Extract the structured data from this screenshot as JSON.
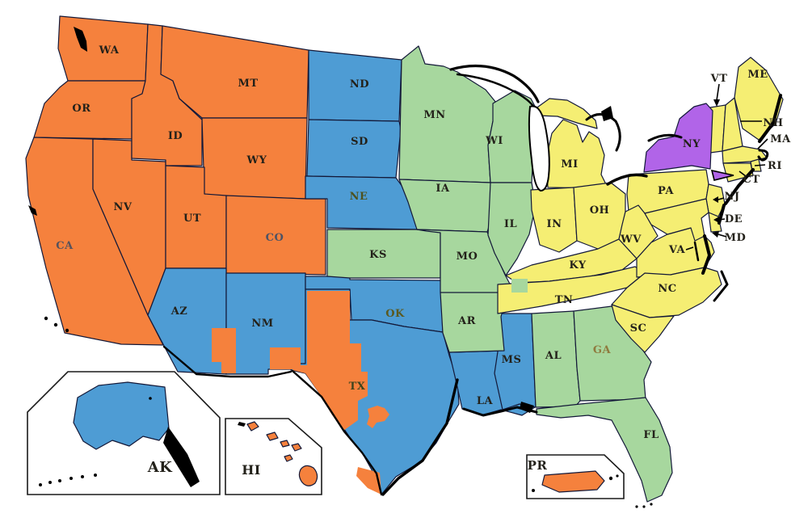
{
  "map": {
    "background": "#ffffff",
    "state_border_color": "#131838",
    "coast_color": "#000000",
    "label_default_color": "#23211a",
    "regions": {
      "orange": "#F5813D",
      "blue": "#4E9CD4",
      "green": "#A7D79E",
      "yellow": "#F5EE73",
      "purple": "#B164E8"
    },
    "label_overrides": {
      "CA": "#56525c",
      "CO": "#4d5365",
      "GA": "#8f7a3e",
      "NE": "#4d521e",
      "OK": "#5a5a22",
      "TX": "#3f451e"
    },
    "states": [
      {
        "abbr": "WA",
        "region": "orange"
      },
      {
        "abbr": "OR",
        "region": "orange"
      },
      {
        "abbr": "CA",
        "region": "orange"
      },
      {
        "abbr": "NV",
        "region": "orange"
      },
      {
        "abbr": "ID",
        "region": "orange"
      },
      {
        "abbr": "MT",
        "region": "orange"
      },
      {
        "abbr": "WY",
        "region": "orange"
      },
      {
        "abbr": "UT",
        "region": "orange"
      },
      {
        "abbr": "CO",
        "region": "orange"
      },
      {
        "abbr": "AZ",
        "region": "blue"
      },
      {
        "abbr": "NM",
        "region": "blue"
      },
      {
        "abbr": "ND",
        "region": "blue"
      },
      {
        "abbr": "SD",
        "region": "blue"
      },
      {
        "abbr": "NE",
        "region": "blue"
      },
      {
        "abbr": "OK",
        "region": "blue"
      },
      {
        "abbr": "TX",
        "region": "blue"
      },
      {
        "abbr": "LA",
        "region": "blue"
      },
      {
        "abbr": "MS",
        "region": "blue"
      },
      {
        "abbr": "AK",
        "region": "blue"
      },
      {
        "abbr": "KS",
        "region": "green"
      },
      {
        "abbr": "MN",
        "region": "green"
      },
      {
        "abbr": "WI",
        "region": "green"
      },
      {
        "abbr": "IA",
        "region": "green"
      },
      {
        "abbr": "MO",
        "region": "green"
      },
      {
        "abbr": "IL",
        "region": "green"
      },
      {
        "abbr": "AR",
        "region": "green"
      },
      {
        "abbr": "AL",
        "region": "green"
      },
      {
        "abbr": "GA",
        "region": "green"
      },
      {
        "abbr": "FL",
        "region": "green"
      },
      {
        "abbr": "MI",
        "region": "yellow"
      },
      {
        "abbr": "IN",
        "region": "yellow"
      },
      {
        "abbr": "OH",
        "region": "yellow"
      },
      {
        "abbr": "KY",
        "region": "yellow"
      },
      {
        "abbr": "TN",
        "region": "yellow"
      },
      {
        "abbr": "PA",
        "region": "yellow"
      },
      {
        "abbr": "WV",
        "region": "yellow"
      },
      {
        "abbr": "VA",
        "region": "yellow"
      },
      {
        "abbr": "NC",
        "region": "yellow"
      },
      {
        "abbr": "SC",
        "region": "yellow"
      },
      {
        "abbr": "ME",
        "region": "yellow"
      },
      {
        "abbr": "VT",
        "region": "yellow"
      },
      {
        "abbr": "NH",
        "region": "yellow"
      },
      {
        "abbr": "MA",
        "region": "yellow"
      },
      {
        "abbr": "RI",
        "region": "yellow"
      },
      {
        "abbr": "CT",
        "region": "yellow"
      },
      {
        "abbr": "NJ",
        "region": "yellow"
      },
      {
        "abbr": "DE",
        "region": "yellow"
      },
      {
        "abbr": "MD",
        "region": "yellow"
      },
      {
        "abbr": "NY",
        "region": "purple"
      },
      {
        "abbr": "HI",
        "region": "orange"
      },
      {
        "abbr": "PR",
        "region": "orange"
      }
    ]
  }
}
